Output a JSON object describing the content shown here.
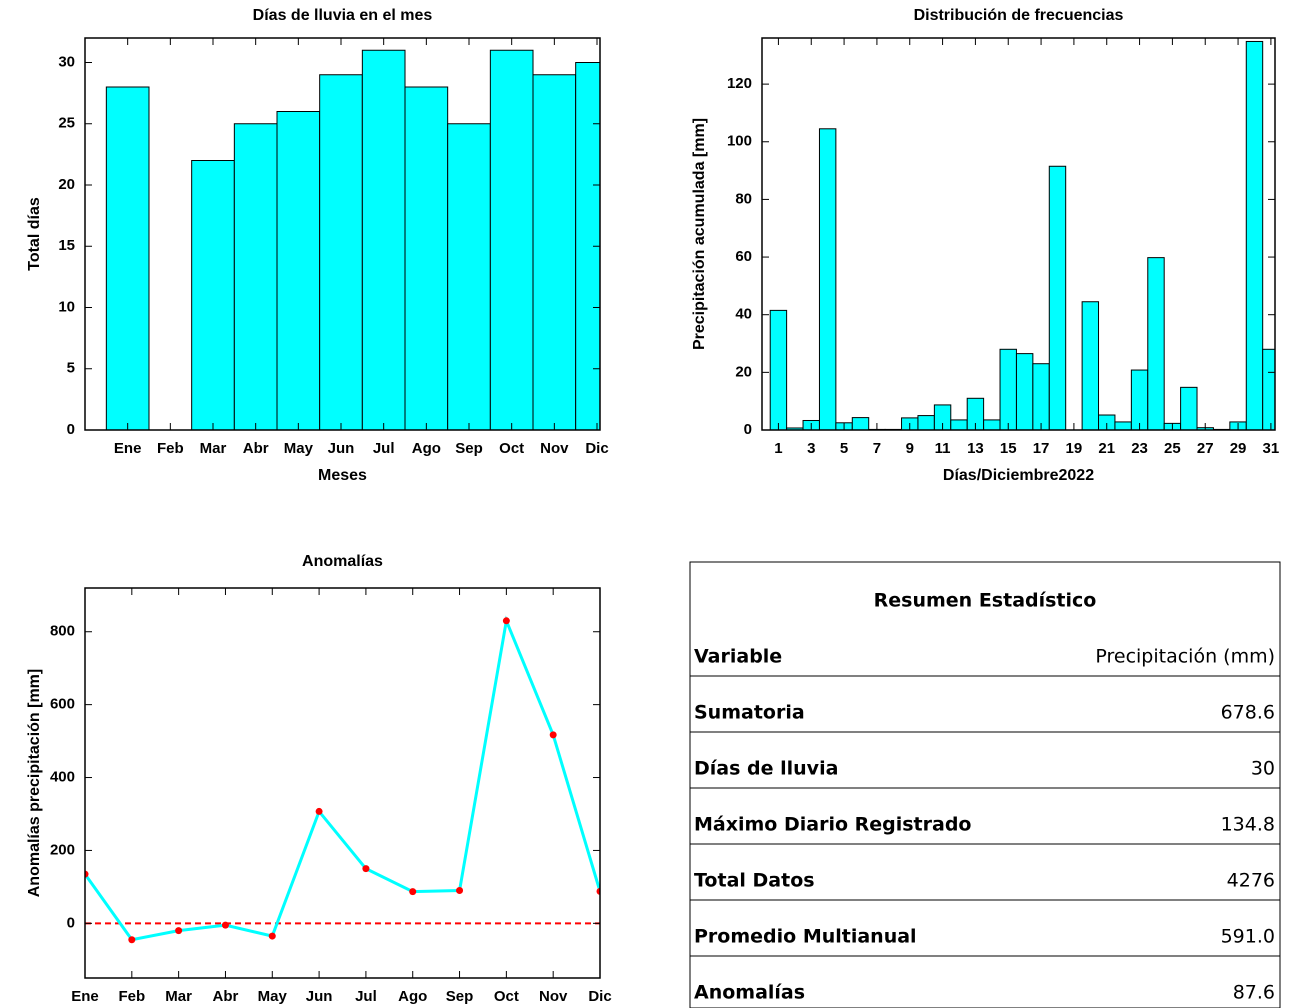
{
  "chart_data": [
    {
      "type": "bar",
      "title": "Días de lluvia en el mes",
      "xlabel": "Meses",
      "ylabel": "Total días",
      "categories": [
        "Ene",
        "Feb",
        "Mar",
        "Abr",
        "May",
        "Jun",
        "Jul",
        "Ago",
        "Sep",
        "Oct",
        "Nov",
        "Dic"
      ],
      "values": [
        28,
        0,
        22,
        25,
        26,
        29,
        31,
        28,
        25,
        31,
        29,
        30
      ],
      "color": "#00ffff",
      "ylim": [
        0,
        32
      ],
      "yticks": [
        0,
        5,
        10,
        15,
        20,
        25,
        30
      ]
    },
    {
      "type": "bar",
      "title": "Distribución de frecuencias",
      "xlabel": "Días/Diciembre2022",
      "ylabel": "Precipitación acumulada [mm]",
      "x": [
        1,
        2,
        3,
        4,
        5,
        6,
        7,
        8,
        9,
        10,
        11,
        12,
        13,
        14,
        15,
        16,
        17,
        18,
        19,
        20,
        21,
        22,
        23,
        24,
        25,
        26,
        27,
        28,
        29,
        30,
        31
      ],
      "values": [
        41.5,
        0.7,
        3.3,
        104.5,
        2.5,
        4.3,
        0.2,
        0.2,
        4.2,
        5,
        8.7,
        3.5,
        11,
        3.5,
        28,
        26.5,
        23,
        91.5,
        0,
        44.5,
        5.2,
        2.8,
        20.8,
        59.8,
        2.3,
        14.8,
        0.8,
        0.2,
        2.8,
        134.8,
        28
      ],
      "color": "#00ffff",
      "xlim": [
        0,
        31.25
      ],
      "xticks": [
        1,
        3,
        5,
        7,
        9,
        11,
        13,
        15,
        17,
        19,
        21,
        23,
        25,
        27,
        29,
        31
      ],
      "ylim": [
        0,
        136
      ],
      "yticks": [
        0,
        20,
        40,
        60,
        80,
        100,
        120
      ]
    },
    {
      "type": "line",
      "title": "Anomalías",
      "ylabel": "Anomalías precipitación [mm]",
      "categories": [
        "Ene",
        "Feb",
        "Mar",
        "Abr",
        "May",
        "Jun",
        "Jul",
        "Ago",
        "Sep",
        "Oct",
        "Nov",
        "Dic"
      ],
      "values": [
        135,
        -45,
        -20,
        -5,
        -35,
        307,
        150,
        87,
        90,
        830,
        517,
        87.6
      ],
      "color": "#00ffff",
      "marker_color": "#ff0000",
      "hline": 0,
      "hline_color": "#ff0000",
      "ylim": [
        -150,
        920
      ],
      "yticks": [
        0,
        200,
        400,
        600,
        800
      ]
    }
  ],
  "table": {
    "title": "Resumen Estadístico",
    "rows": [
      [
        "Variable",
        "Precipitación (mm)"
      ],
      [
        "Sumatoria",
        "678.6"
      ],
      [
        "Días de lluvia",
        "30"
      ],
      [
        "Máximo Diario Registrado",
        "134.8"
      ],
      [
        "Total Datos",
        "4276"
      ],
      [
        "Promedio Multianual",
        "591.0"
      ],
      [
        "Anomalías",
        "87.6"
      ]
    ]
  }
}
